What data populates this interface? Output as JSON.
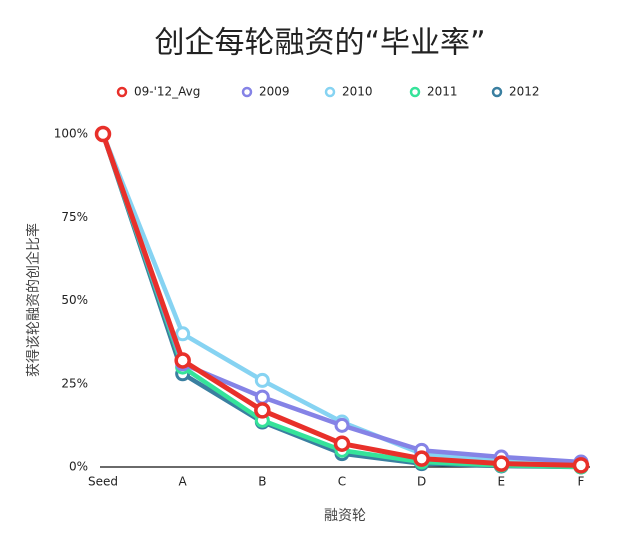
{
  "chart_data": {
    "type": "line",
    "title": "创企每轮融资的“毕业率”",
    "x_label": "融资轮",
    "y_label": "获得该轮融资的创企比率",
    "categories": [
      "Seed",
      "A",
      "B",
      "C",
      "D",
      "E",
      "F"
    ],
    "series": [
      {
        "name": "09-'12_Avg",
        "color": "#e8302a",
        "values": [
          100,
          32,
          17,
          7,
          2.5,
          1,
          0.5
        ]
      },
      {
        "name": "2009",
        "color": "#8583e6",
        "values": [
          100,
          31,
          21,
          12.5,
          5,
          3,
          1.5
        ]
      },
      {
        "name": "2010",
        "color": "#86d3f2",
        "values": [
          100,
          40,
          26,
          13.5,
          4,
          2,
          1
        ]
      },
      {
        "name": "2011",
        "color": "#35e39a",
        "values": [
          100,
          30,
          14,
          5,
          1.5,
          0.5,
          0
        ]
      },
      {
        "name": "2012",
        "color": "#3a7fa0",
        "values": [
          100,
          28,
          13.5,
          4,
          1,
          0.3,
          0
        ]
      }
    ],
    "ylim": [
      0,
      100
    ],
    "yticks": [
      {
        "value": 0,
        "label": "0%"
      },
      {
        "value": 25,
        "label": "25%"
      },
      {
        "value": 50,
        "label": "50%"
      },
      {
        "value": 75,
        "label": "75%"
      },
      {
        "value": 100,
        "label": "100%"
      }
    ],
    "legend": "top"
  }
}
